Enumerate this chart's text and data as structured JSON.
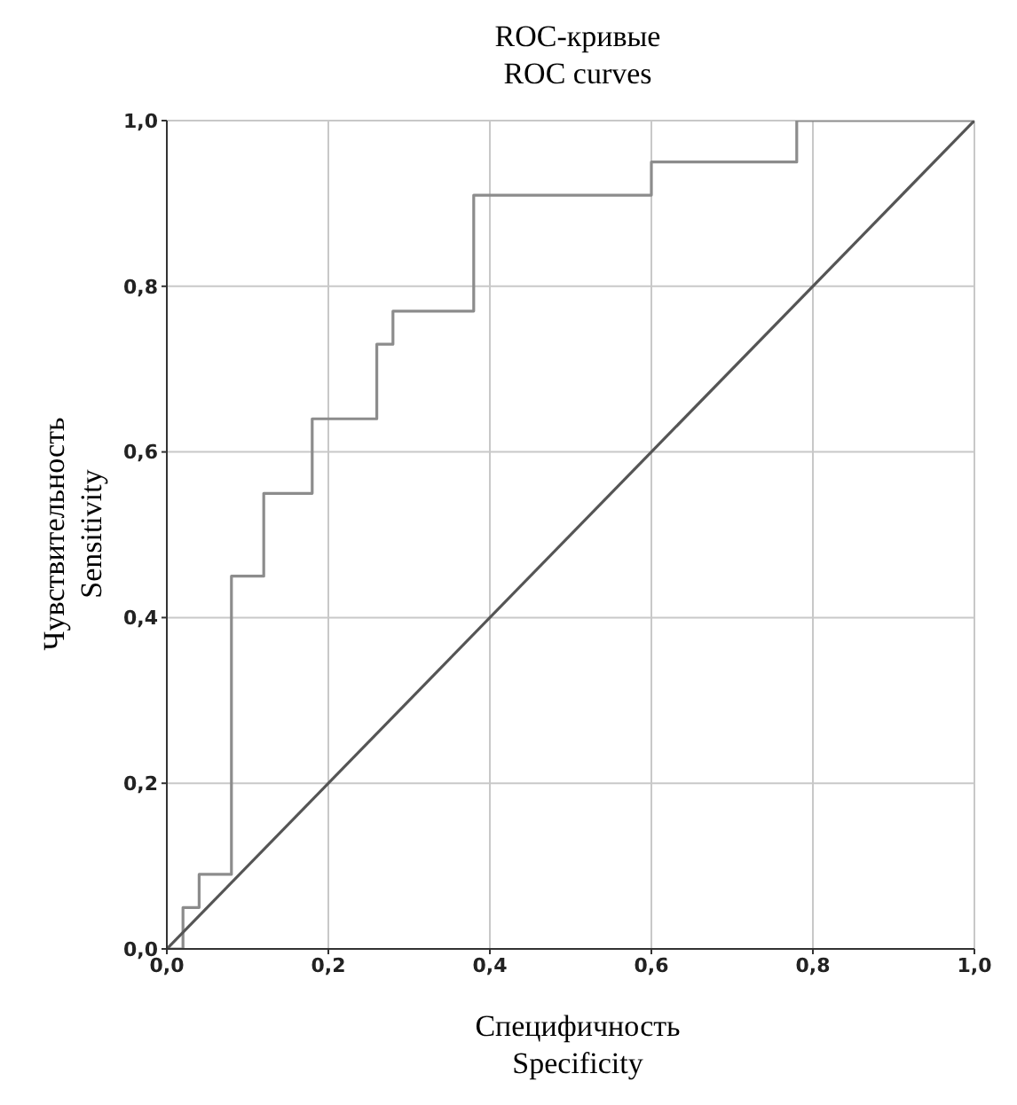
{
  "chart_data": {
    "type": "line",
    "title": "ROC-кривые",
    "subtitle": "ROC curves",
    "xlabel": "Специфичность\nSpecificity",
    "ylabel": "Чувствительность\nSensitivity",
    "series": [
      {
        "type": "step",
        "color": "#8c8c8c",
        "x": [
          0,
          0.02,
          0.04,
          0.08,
          0.12,
          0.18,
          0.26,
          0.28,
          0.38,
          0.6,
          0.78,
          1.0
        ],
        "values": [
          0,
          0.05,
          0.09,
          0.45,
          0.55,
          0.64,
          0.73,
          0.77,
          0.91,
          0.95,
          1.0,
          1.0
        ]
      },
      {
        "color": "#555555",
        "x": [
          0,
          1
        ],
        "values": [
          0,
          1
        ]
      }
    ],
    "xlim": [
      0,
      1
    ],
    "ylim": [
      0,
      1
    ],
    "xticks": [
      {
        "value": 0,
        "label": "0,0"
      },
      {
        "value": 0.2,
        "label": "0,2"
      },
      {
        "value": 0.4,
        "label": "0,4"
      },
      {
        "value": 0.6,
        "label": "0,6"
      },
      {
        "value": 0.8,
        "label": "0,8"
      },
      {
        "value": 1,
        "label": "1,0"
      }
    ],
    "yticks": [
      {
        "value": 0,
        "label": "0,0"
      },
      {
        "value": 0.2,
        "label": "0,2"
      },
      {
        "value": 0.4,
        "label": "0,4"
      },
      {
        "value": 0.6,
        "label": "0,6"
      },
      {
        "value": 0.8,
        "label": "0,8"
      },
      {
        "value": 1,
        "label": "1,0"
      }
    ],
    "grid": true
  }
}
